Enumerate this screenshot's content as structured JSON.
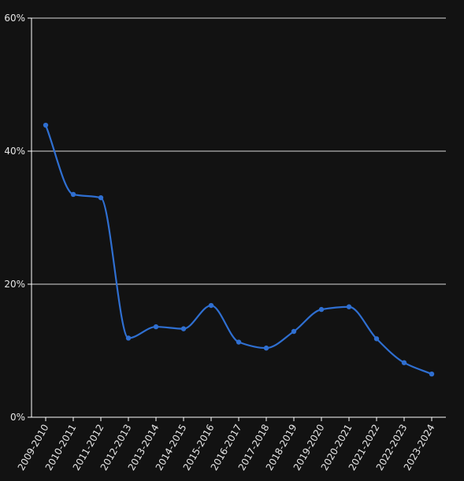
{
  "chart_data": {
    "type": "line",
    "title": "",
    "xlabel": "",
    "ylabel": "",
    "categories": [
      "2009-2010",
      "2010-2011",
      "2011-2012",
      "2012-2013",
      "2013-2014",
      "2014-2015",
      "2015-2016",
      "2016-2017",
      "2017-2018",
      "2018-2019",
      "2019-2020",
      "2020-2021",
      "2021-2022",
      "2022-2023",
      "2023-2024"
    ],
    "series": [
      {
        "values": [
          43.9,
          33.5,
          33.0,
          11.9,
          13.6,
          13.3,
          16.8,
          11.3,
          10.4,
          12.9,
          16.2,
          16.6,
          11.8,
          8.2,
          6.5
        ]
      }
    ],
    "ylim": [
      0,
      60
    ],
    "yticks": [
      0,
      20,
      40,
      60
    ],
    "ytick_labels": [
      "0%",
      "20%",
      "40%",
      "60%"
    ],
    "grid": true,
    "smooth": true,
    "colors": {
      "background": "#121212",
      "line": "#2f6fd1",
      "text": "#e6e6e6",
      "grid": "#ffffff"
    }
  }
}
